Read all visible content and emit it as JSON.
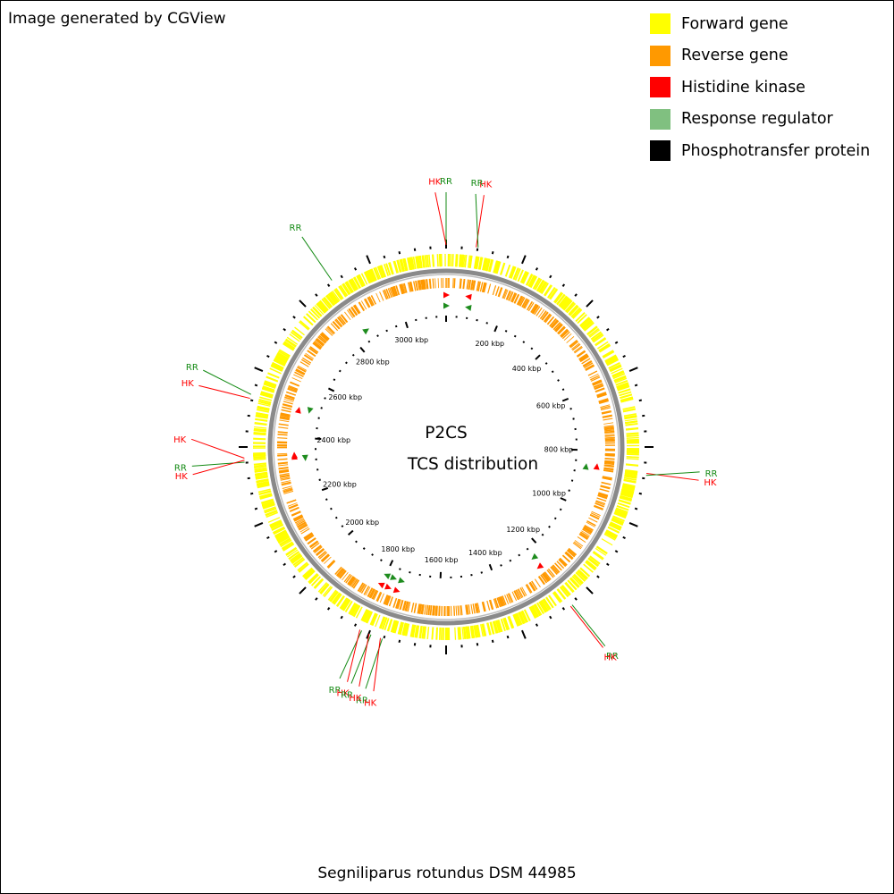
{
  "credit": "Image generated by CGView",
  "legend": [
    {
      "label": "Forward gene",
      "color": "#ffff00"
    },
    {
      "label": "Reverse gene",
      "color": "#ff9900"
    },
    {
      "label": "Histidine kinase",
      "color": "#ff0000"
    },
    {
      "label": "Response regulator",
      "color": "#80c080"
    },
    {
      "label": "Phosphotransfer protein",
      "color": "#000000"
    }
  ],
  "center_title": [
    "P2CS",
    "TCS distribution"
  ],
  "organism": "Segniliparus rotundus DSM 44985",
  "genome_length_kbp": 3157,
  "kbp_ticks": [
    {
      "kbp": 200,
      "label": "200 kbp"
    },
    {
      "kbp": 400,
      "label": "400 kbp"
    },
    {
      "kbp": 600,
      "label": "600 kbp"
    },
    {
      "kbp": 800,
      "label": "800 kbp"
    },
    {
      "kbp": 1000,
      "label": "1000 kbp"
    },
    {
      "kbp": 1200,
      "label": "1200 kbp"
    },
    {
      "kbp": 1400,
      "label": "1400 kbp"
    },
    {
      "kbp": 1600,
      "label": "1600 kbp"
    },
    {
      "kbp": 1800,
      "label": "1800 kbp"
    },
    {
      "kbp": 2000,
      "label": "2000 kbp"
    },
    {
      "kbp": 2200,
      "label": "2200 kbp"
    },
    {
      "kbp": 2400,
      "label": "2400 kbp"
    },
    {
      "kbp": 2600,
      "label": "2600 kbp"
    },
    {
      "kbp": 2800,
      "label": "2800 kbp"
    },
    {
      "kbp": 3000,
      "label": "3000 kbp"
    }
  ],
  "tcs_genes": [
    {
      "type": "RR",
      "label": "RR",
      "kbp": 0,
      "strand": "forward"
    },
    {
      "type": "HK",
      "label": "HK",
      "kbp": 0,
      "strand": "forward"
    },
    {
      "type": "HK",
      "label": "HK",
      "kbp": 75,
      "strand": "reverse"
    },
    {
      "type": "RR",
      "label": "RR",
      "kbp": 80,
      "strand": "reverse"
    },
    {
      "type": "HK",
      "label": "HK",
      "kbp": 855,
      "strand": "reverse"
    },
    {
      "type": "RR",
      "label": "RR",
      "kbp": 860,
      "strand": "reverse"
    },
    {
      "type": "RR",
      "label": "RR",
      "kbp": 1240,
      "strand": "forward"
    },
    {
      "type": "HK",
      "label": "HK",
      "kbp": 1245,
      "strand": "forward"
    },
    {
      "type": "RR",
      "label": "RR",
      "kbp": 1740,
      "strand": "reverse"
    },
    {
      "type": "HK",
      "label": "HK",
      "kbp": 1745,
      "strand": "reverse"
    },
    {
      "type": "RR",
      "label": "RR",
      "kbp": 1795,
      "strand": "forward"
    },
    {
      "type": "HK",
      "label": "HK",
      "kbp": 1800,
      "strand": "forward"
    },
    {
      "type": "RR",
      "label": "RR",
      "kbp": 1770,
      "strand": "reverse"
    },
    {
      "type": "HK",
      "label": "HK",
      "kbp": 1775,
      "strand": "reverse"
    },
    {
      "type": "RR",
      "label": "RR",
      "kbp": 2330,
      "strand": "reverse"
    },
    {
      "type": "HK",
      "label": "HK",
      "kbp": 2335,
      "strand": "forward"
    },
    {
      "type": "HK",
      "label": "HK",
      "kbp": 2340,
      "strand": "forward"
    },
    {
      "type": "HK",
      "label": "HK",
      "kbp": 2490,
      "strand": "forward"
    },
    {
      "type": "RR",
      "label": "RR",
      "kbp": 2500,
      "strand": "reverse"
    },
    {
      "type": "RR",
      "label": "RR",
      "kbp": 2855,
      "strand": "forward"
    }
  ]
}
